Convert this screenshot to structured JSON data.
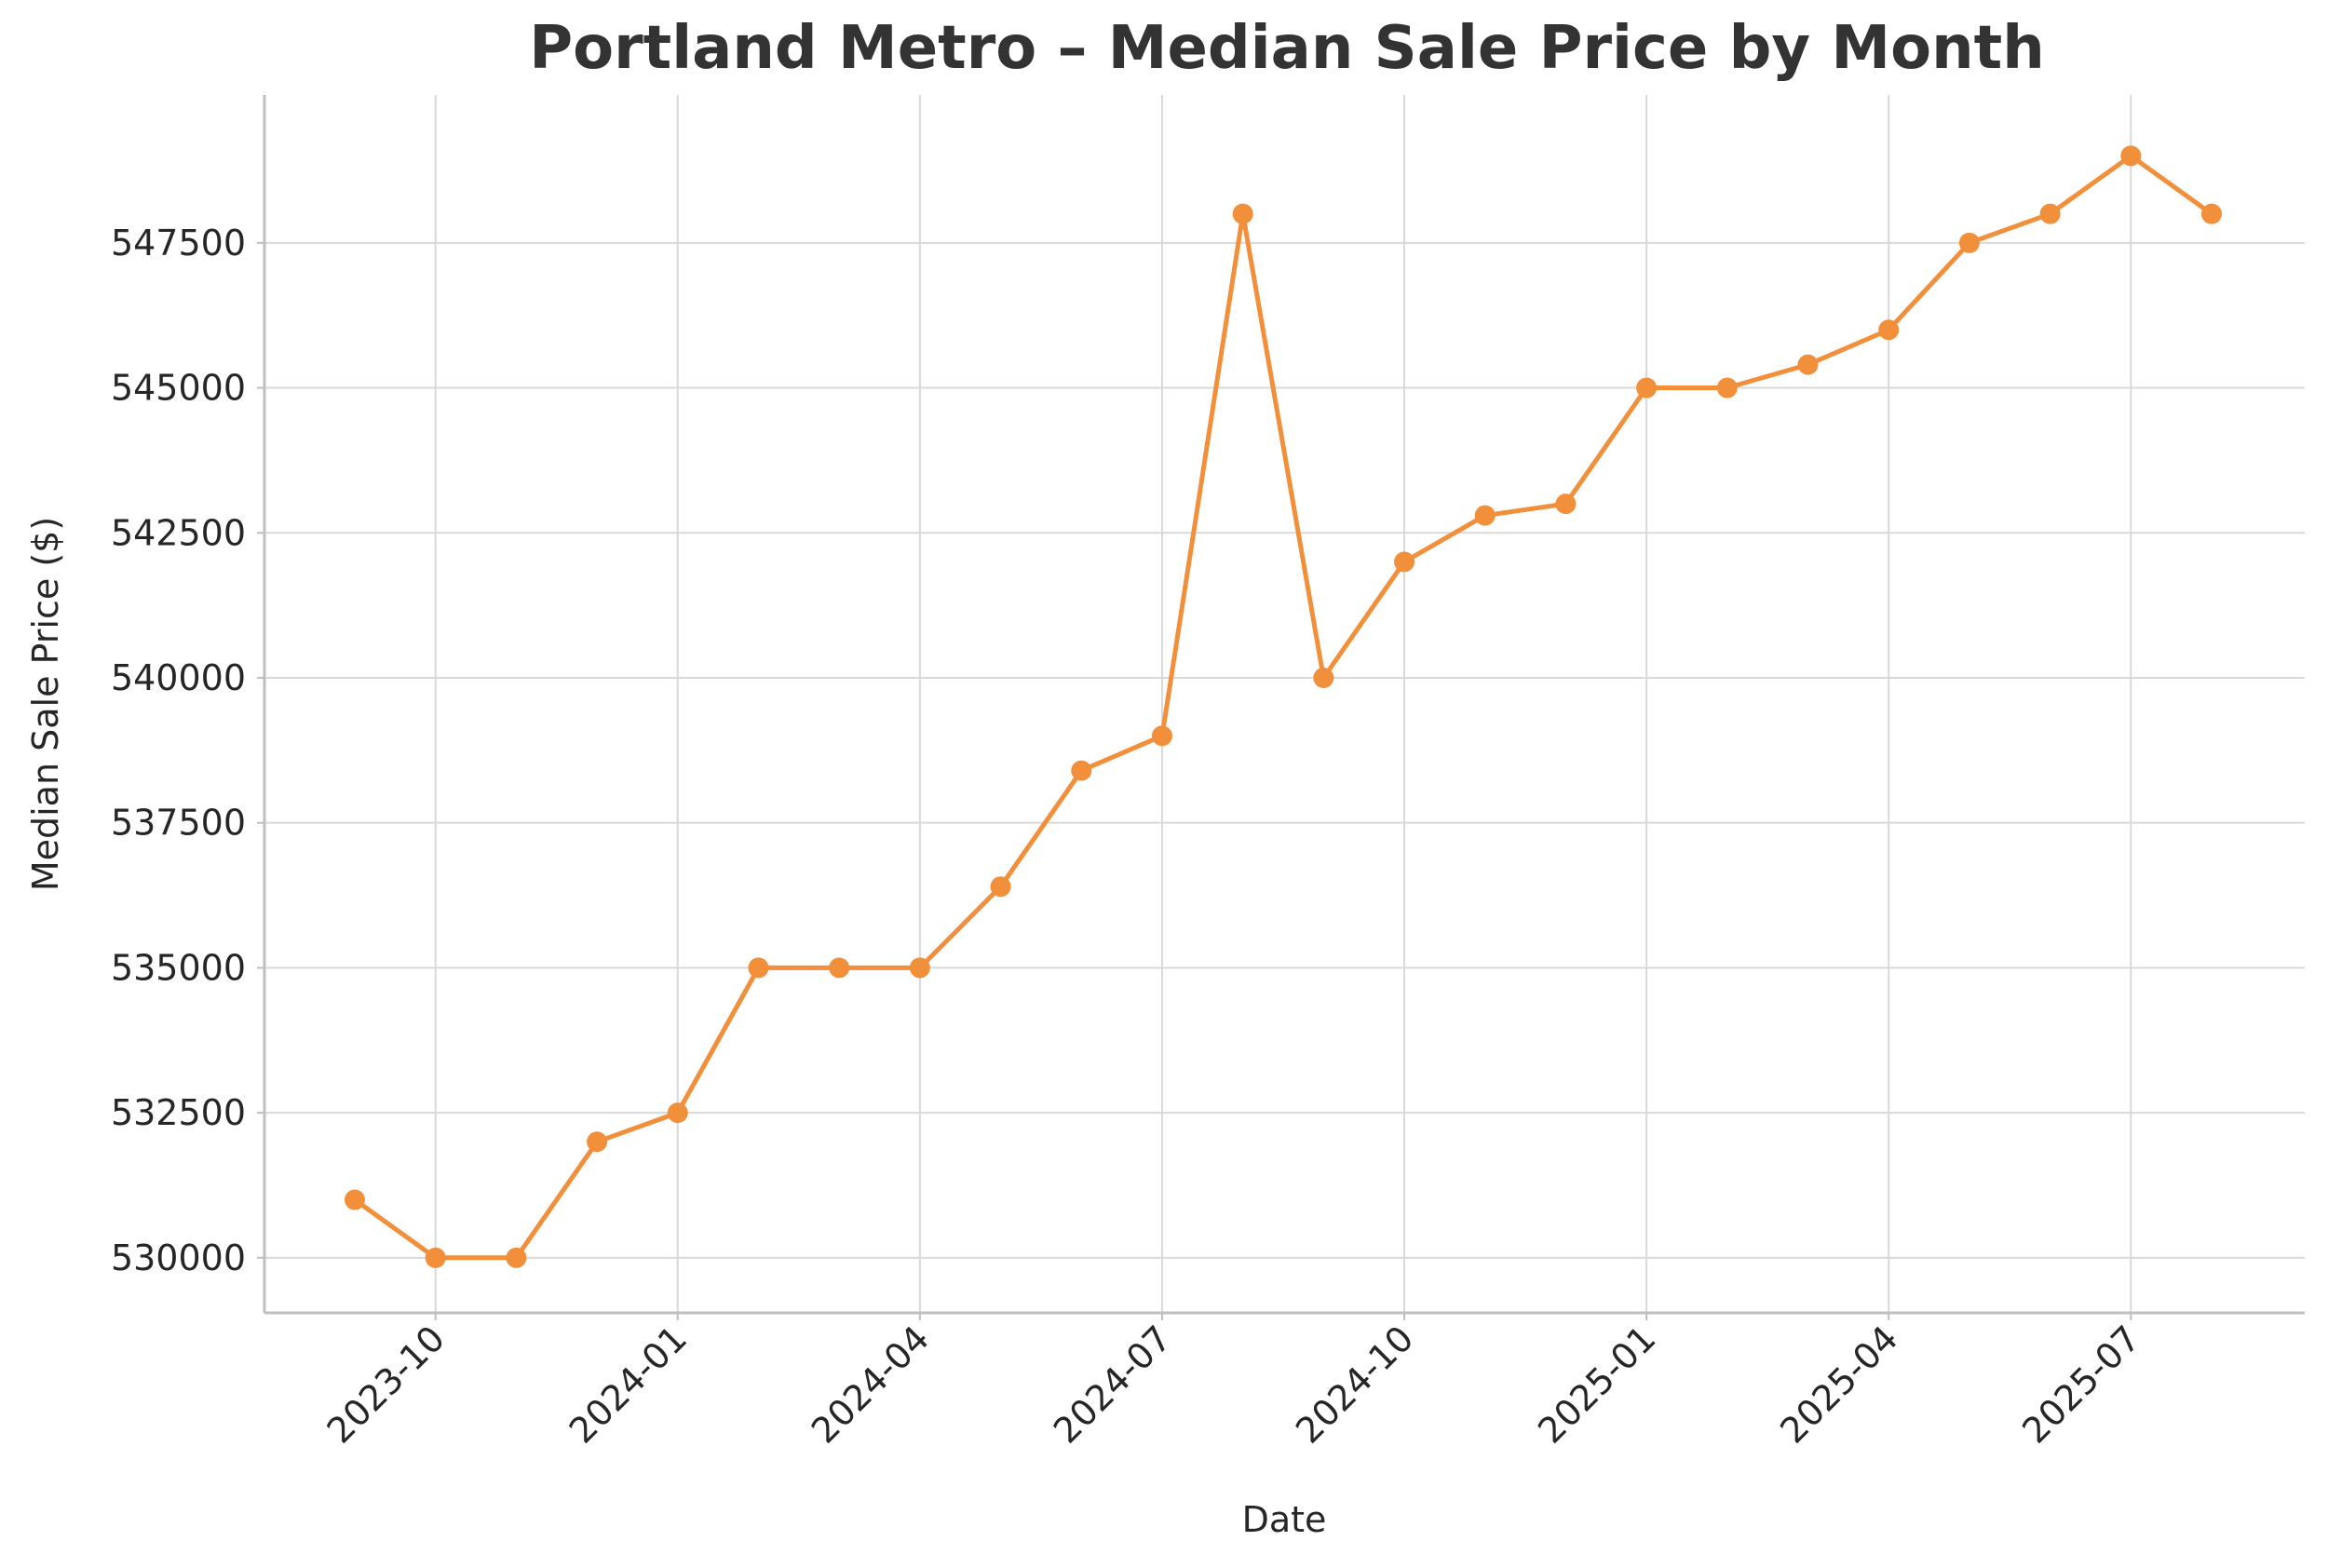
{
  "chart_data": {
    "type": "line",
    "title": "Portland Metro – Median Sale Price by Month",
    "xlabel": "Date",
    "ylabel": "Median Sale Price ($)",
    "grid": true,
    "line_color": "#f28f3b",
    "series": [
      {
        "name": "Median Sale Price",
        "x": [
          "2023-09",
          "2023-10",
          "2023-11",
          "2023-12",
          "2024-01",
          "2024-02",
          "2024-03",
          "2024-04",
          "2024-05",
          "2024-06",
          "2024-07",
          "2024-08",
          "2024-09",
          "2024-10",
          "2024-11",
          "2024-12",
          "2025-01",
          "2025-02",
          "2025-03",
          "2025-04",
          "2025-05",
          "2025-06",
          "2025-07",
          "2025-08"
        ],
        "values": [
          531000,
          530000,
          530000,
          532000,
          532500,
          535000,
          535000,
          535000,
          536400,
          538400,
          539000,
          548000,
          540000,
          542000,
          542800,
          543000,
          545000,
          545000,
          545400,
          546000,
          547500,
          548000,
          549000,
          548000
        ]
      }
    ],
    "x_ticks": [
      "2023-10",
      "2024-01",
      "2024-04",
      "2024-07",
      "2024-10",
      "2025-01",
      "2025-04",
      "2025-07"
    ],
    "y_ticks": [
      530000,
      532500,
      535000,
      537500,
      540000,
      542500,
      545000,
      547500
    ],
    "ylim": [
      529050,
      550050
    ]
  }
}
